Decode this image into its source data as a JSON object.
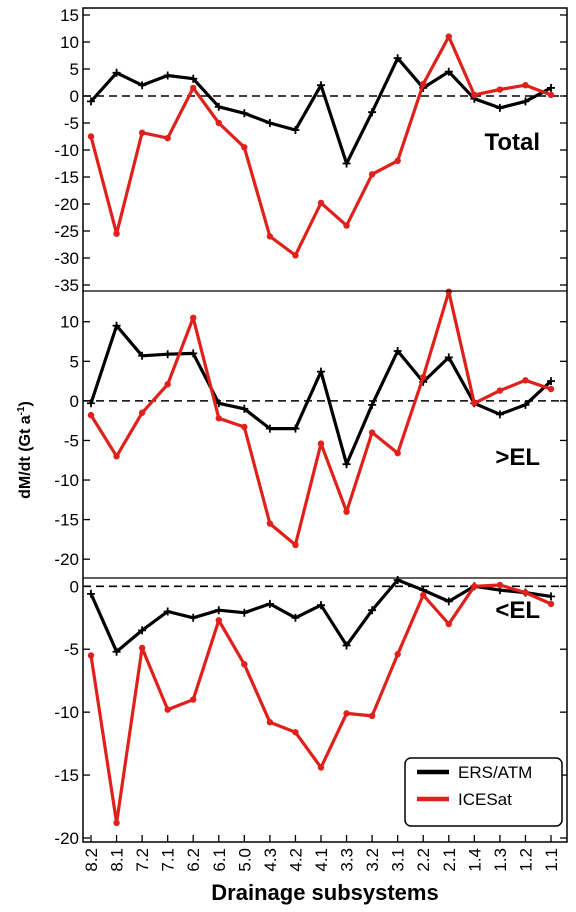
{
  "chart_data": {
    "type": "line",
    "ylabel": "dM/dt  (Gt a",
    "ylabel_sup": "-1",
    "ylabel_close": ")",
    "xlabel": "Drainage subsystems",
    "categories": [
      "8.2",
      "8.1",
      "7.2",
      "7.1",
      "6.2",
      "6.1",
      "5.0",
      "4.3",
      "4.2",
      "4.1",
      "3.3",
      "3.2",
      "3.1",
      "2.2",
      "2.1",
      "1.4",
      "1.3",
      "1.2",
      "1.1"
    ],
    "legend": {
      "position": "bottom-right",
      "entries": [
        {
          "label": "ERS/ATM",
          "color": "#000000"
        },
        {
          "label": "ICESat",
          "color": "#e0201b"
        }
      ]
    },
    "panels": [
      {
        "label": "Total",
        "ylim": [
          -35,
          15
        ],
        "yticks": [
          15,
          10,
          5,
          0,
          -5,
          -10,
          -15,
          -20,
          -25,
          -30,
          -35
        ],
        "series": [
          {
            "name": "ERS/ATM",
            "color": "#000000",
            "values": [
              -1,
              4.3,
              2,
              3.8,
              3.2,
              -2,
              -3.2,
              -5,
              -6.3,
              2,
              -12.5,
              -3,
              7,
              1.5,
              4.5,
              -0.5,
              -2.2,
              -1,
              1.5
            ]
          },
          {
            "name": "ICESat",
            "color": "#e0201b",
            "values": [
              -7.5,
              -25.5,
              -6.8,
              -7.8,
              1.5,
              -5,
              -9.5,
              -26,
              -29.5,
              -19.8,
              -24,
              -14.5,
              -12,
              2.2,
              11,
              0.2,
              1.2,
              2,
              0.2
            ]
          }
        ]
      },
      {
        "label": ">EL",
        "ylim": [
          -22,
          13
        ],
        "yticks": [
          10,
          5,
          0,
          -5,
          -10,
          -15,
          -20
        ],
        "series": [
          {
            "name": "ERS/ATM",
            "color": "#000000",
            "values": [
              -0.3,
              9.5,
              5.7,
              5.9,
              6,
              -0.3,
              -1,
              -3.5,
              -3.5,
              3.7,
              -8,
              -0.5,
              6.3,
              2.4,
              5.5,
              -0.3,
              -1.7,
              -0.5,
              2.5
            ]
          },
          {
            "name": "ICESat",
            "color": "#e0201b",
            "values": [
              -1.8,
              -7,
              -1.5,
              2.1,
              10.5,
              -2.2,
              -3.3,
              -15.5,
              -18.2,
              -5.4,
              -14,
              -4,
              -6.6,
              3,
              13.8,
              -0.3,
              1.3,
              2.6,
              1.5
            ]
          }
        ]
      },
      {
        "label": "<EL",
        "ylim": [
          -20,
          0.5
        ],
        "yticks": [
          0,
          -5,
          -10,
          -15,
          -20
        ],
        "series": [
          {
            "name": "ERS/ATM",
            "color": "#000000",
            "values": [
              -0.6,
              -5.2,
              -3.5,
              -2,
              -2.5,
              -1.9,
              -2.1,
              -1.4,
              -2.5,
              -1.5,
              -4.7,
              -1.9,
              0.5,
              -0.3,
              -1.2,
              0,
              -0.3,
              -0.5,
              -0.8
            ]
          },
          {
            "name": "ICESat",
            "color": "#e0201b",
            "values": [
              -5.5,
              -18.8,
              -4.9,
              -9.8,
              -9,
              -2.7,
              -6.2,
              -10.8,
              -11.6,
              -14.4,
              -10.1,
              -10.3,
              -5.4,
              -0.7,
              -3,
              0,
              0.1,
              -0.5,
              -1.4
            ]
          }
        ]
      }
    ]
  }
}
